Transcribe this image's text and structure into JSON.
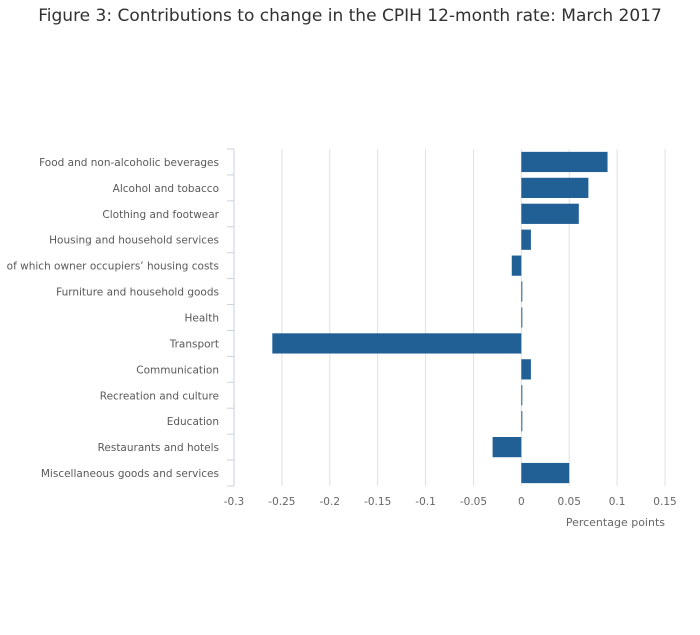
{
  "title": "Figure 3: Contributions to change in the CPIH 12-month rate: March 2017",
  "chart_data": {
    "type": "bar",
    "orientation": "horizontal",
    "title": "Figure 3: Contributions to change in the CPIH 12-month rate: March 2017",
    "xlabel": "Percentage points",
    "ylabel": "",
    "categories": [
      "Food and non-alcoholic beverages",
      "Alcohol and tobacco",
      "Clothing and footwear",
      "Housing and household services",
      "of which owner occupiers’ housing costs",
      "Furniture and household goods",
      "Health",
      "Transport",
      "Communication",
      "Recreation and culture",
      "Education",
      "Restaurants and hotels",
      "Miscellaneous goods and services"
    ],
    "values": [
      0.09,
      0.07,
      0.06,
      0.01,
      -0.01,
      0.0,
      0.0,
      -0.26,
      0.01,
      0.0,
      0.0,
      -0.03,
      0.05
    ],
    "xlim": [
      -0.3,
      0.15
    ],
    "xticks": [
      -0.3,
      -0.25,
      -0.2,
      -0.15,
      -0.1,
      -0.05,
      0,
      0.05,
      0.1,
      0.15
    ],
    "xtick_labels": [
      "-0.3",
      "-0.25",
      "-0.2",
      "-0.15",
      "-0.1",
      "-0.05",
      "0",
      "0.05",
      "0.1",
      "0.15"
    ],
    "grid": true,
    "colors": {
      "bar": "#206095",
      "grid": "#e0e0e0",
      "axis": "#c8d2de",
      "text": "#666666"
    }
  }
}
